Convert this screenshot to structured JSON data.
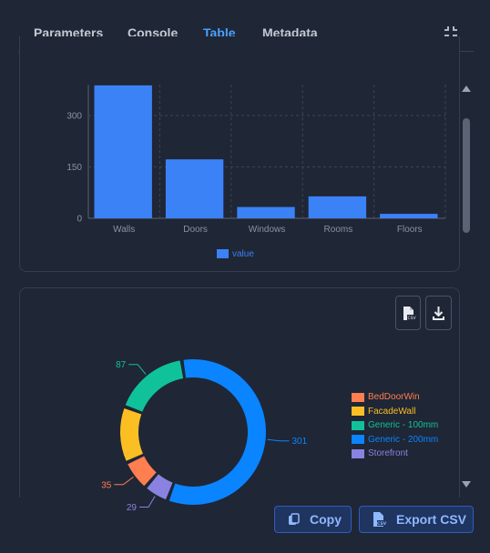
{
  "tabs": [
    {
      "label": "Parameters",
      "active": false
    },
    {
      "label": "Console",
      "active": false
    },
    {
      "label": "Table",
      "active": true
    },
    {
      "label": "Metadata",
      "active": false
    }
  ],
  "icons": {
    "collapse": "collapse-icon",
    "csv": "csv-file-icon",
    "download": "download-icon",
    "copy": "copy-icon"
  },
  "chart_data": [
    {
      "type": "bar",
      "categories": [
        "Walls",
        "Doors",
        "Windows",
        "Rooms",
        "Floors"
      ],
      "series": [
        {
          "name": "value",
          "values": [
            388,
            172,
            33,
            64,
            13
          ],
          "color": "#3b82f6"
        }
      ],
      "y_ticks": [
        "0",
        "150",
        "300"
      ],
      "ylim": [
        0,
        390
      ],
      "grid": true,
      "legend": "bottom-center"
    },
    {
      "type": "pie",
      "variant": "donut",
      "slices": [
        {
          "name": "BedDoorWin",
          "value": 35,
          "color": "#ff7f50"
        },
        {
          "name": "FacadeWall",
          "value": 65,
          "color": "#fbbf24"
        },
        {
          "name": "Generic - 100mm",
          "value": 87,
          "color": "#10c29a"
        },
        {
          "name": "Generic - 200mm",
          "value": 301,
          "color": "#0a84ff"
        },
        {
          "name": "Storefront",
          "value": 29,
          "color": "#8a82e0"
        }
      ],
      "labels_visible": [
        "301",
        "29",
        "35",
        "87"
      ],
      "legend": "right"
    }
  ],
  "buttons": {
    "copy": "Copy",
    "export": "Export CSV"
  }
}
